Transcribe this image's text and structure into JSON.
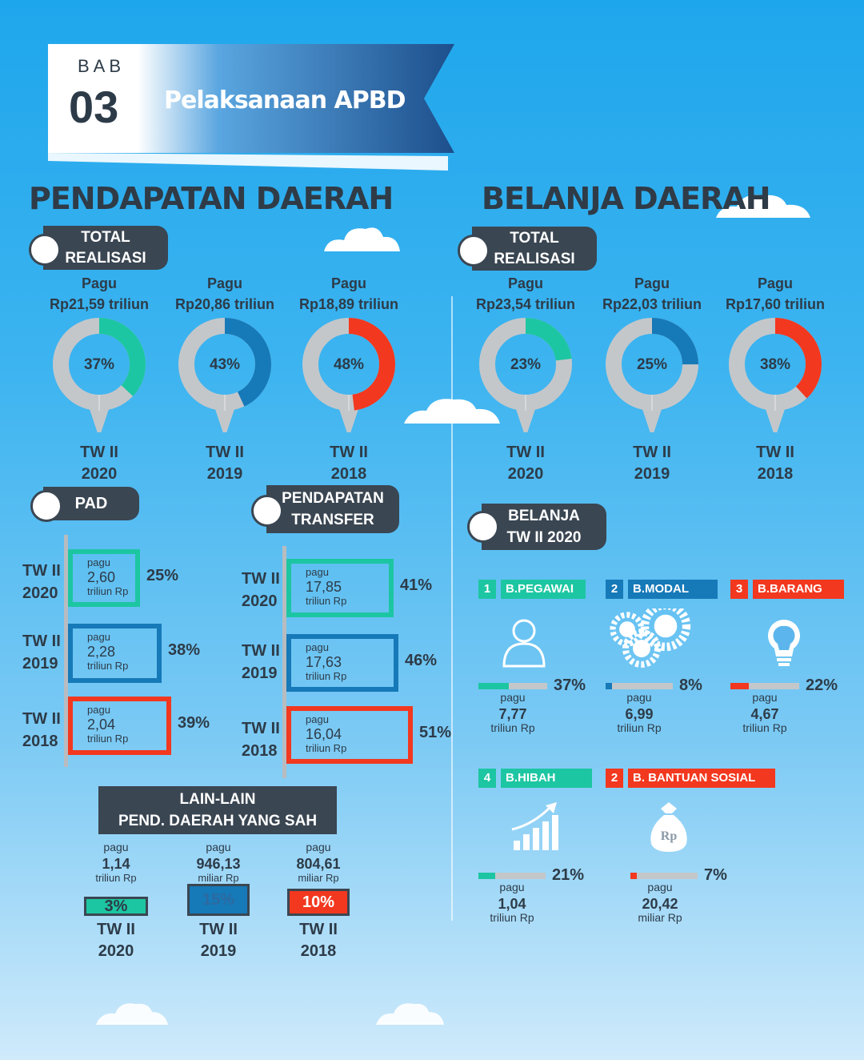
{
  "header": {
    "bab": "BAB",
    "number": "03",
    "title": "Pelaksanaan APBD"
  },
  "pendapatan": {
    "title": "PENDAPATAN DAERAH",
    "total_label": [
      "TOTAL",
      "REALISASI"
    ],
    "donuts": [
      {
        "pagu_label": "Pagu",
        "pagu": "Rp21,59 triliun",
        "pct": "37%",
        "value": 37,
        "color": "#1dc6a2",
        "tw": "TW II",
        "year": "2020"
      },
      {
        "pagu_label": "Pagu",
        "pagu": "Rp20,86 triliun",
        "pct": "43%",
        "value": 43,
        "color": "#1679b8",
        "tw": "TW II",
        "year": "2019"
      },
      {
        "pagu_label": "Pagu",
        "pagu": "Rp18,89 triliun",
        "pct": "48%",
        "value": 48,
        "color": "#f2381f",
        "tw": "TW II",
        "year": "2018"
      }
    ],
    "pad": {
      "label": "PAD",
      "rows": [
        {
          "tw": "TW II",
          "year": "2020",
          "pagu": "pagu",
          "value": "2,60",
          "unit": "triliun Rp",
          "pct": "25%",
          "color": "#1dc6a2"
        },
        {
          "tw": "TW II",
          "year": "2019",
          "pagu": "pagu",
          "value": "2,28",
          "unit": "triliun Rp",
          "pct": "38%",
          "color": "#1679b8"
        },
        {
          "tw": "TW II",
          "year": "2018",
          "pagu": "pagu",
          "value": "2,04",
          "unit": "triliun Rp",
          "pct": "39%",
          "color": "#f2381f"
        }
      ]
    },
    "transfer": {
      "label": [
        "PENDAPATAN",
        "TRANSFER"
      ],
      "rows": [
        {
          "tw": "TW II",
          "year": "2020",
          "pagu": "pagu",
          "value": "17,85",
          "unit": "triliun Rp",
          "pct": "41%",
          "color": "#1dc6a2"
        },
        {
          "tw": "TW II",
          "year": "2019",
          "pagu": "pagu",
          "value": "17,63",
          "unit": "triliun Rp",
          "pct": "46%",
          "color": "#1679b8"
        },
        {
          "tw": "TW II",
          "year": "2018",
          "pagu": "pagu",
          "value": "16,04",
          "unit": "triliun Rp",
          "pct": "51%",
          "color": "#f2381f"
        }
      ]
    },
    "lain": {
      "label": [
        "LAIN-LAIN",
        "PEND. DAERAH YANG SAH"
      ],
      "items": [
        {
          "pagu": "pagu",
          "value": "1,14",
          "unit": "triliun Rp",
          "pct": "3%",
          "color": "#1dc6a2",
          "tw": "TW II",
          "year": "2020"
        },
        {
          "pagu": "pagu",
          "value": "946,13",
          "unit": "miliar Rp",
          "pct": "15%",
          "color": "#1679b8",
          "tw": "TW II",
          "year": "2019"
        },
        {
          "pagu": "pagu",
          "value": "804,61",
          "unit": "miliar Rp",
          "pct": "10%",
          "color": "#f2381f",
          "tw": "TW II",
          "year": "2018"
        }
      ]
    }
  },
  "belanja": {
    "title": "BELANJA DAERAH",
    "total_label": [
      "TOTAL",
      "REALISASI"
    ],
    "donuts": [
      {
        "pagu_label": "Pagu",
        "pagu": "Rp23,54 triliun",
        "pct": "23%",
        "value": 23,
        "color": "#1dc6a2",
        "tw": "TW II",
        "year": "2020"
      },
      {
        "pagu_label": "Pagu",
        "pagu": "Rp22,03 triliun",
        "pct": "25%",
        "value": 25,
        "color": "#1679b8",
        "tw": "TW II",
        "year": "2019"
      },
      {
        "pagu_label": "Pagu",
        "pagu": "Rp17,60 triliun",
        "pct": "38%",
        "value": 38,
        "color": "#f2381f",
        "tw": "TW II",
        "year": "2018"
      }
    ],
    "tw_label": [
      "BELANJA",
      "TW II 2020"
    ],
    "categories": [
      {
        "num": "1",
        "name": "B.PEGAWAI",
        "color": "#1dc6a2",
        "icon": "person-icon",
        "pct": "37%",
        "value": 37,
        "pagu": "pagu",
        "amount": "7,77",
        "unit": "triliun Rp"
      },
      {
        "num": "2",
        "name": "B.MODAL",
        "color": "#1679b8",
        "icon": "gears-icon",
        "pct": "8%",
        "value": 8,
        "pagu": "pagu",
        "amount": "6,99",
        "unit": "triliun Rp"
      },
      {
        "num": "3",
        "name": "B.BARANG",
        "color": "#f2381f",
        "icon": "lightbulb-icon",
        "pct": "22%",
        "value": 22,
        "pagu": "pagu",
        "amount": "4,67",
        "unit": "triliun Rp"
      },
      {
        "num": "4",
        "name": "B.HIBAH",
        "color": "#1dc6a2",
        "icon": "growth-chart-icon",
        "pct": "21%",
        "value": 21,
        "pagu": "pagu",
        "amount": "1,04",
        "unit": "triliun Rp"
      },
      {
        "num": "2",
        "name": "B. BANTUAN SOSIAL",
        "color": "#f2381f",
        "icon": "money-bag-icon",
        "pct": "7%",
        "value": 7,
        "pagu": "pagu",
        "amount": "20,42",
        "unit": "miliar Rp",
        "icon_text": "Rp"
      }
    ]
  },
  "chart_data": [
    {
      "type": "pie",
      "title": "PENDAPATAN DAERAH",
      "categories": [
        "TW II 2020",
        "TW II 2019",
        "TW II 2018"
      ],
      "values": [
        37,
        43,
        48
      ]
    },
    {
      "type": "pie",
      "title": "BELANJA DAERAH",
      "categories": [
        "TW II 2020",
        "TW II 2019",
        "TW II 2018"
      ],
      "values": [
        23,
        25,
        38
      ]
    },
    {
      "type": "bar",
      "title": "PAD",
      "categories": [
        "TW II 2020",
        "TW II 2019",
        "TW II 2018"
      ],
      "values": [
        25,
        38,
        39
      ]
    },
    {
      "type": "bar",
      "title": "PENDAPATAN TRANSFER",
      "categories": [
        "TW II 2020",
        "TW II 2019",
        "TW II 2018"
      ],
      "values": [
        41,
        46,
        51
      ]
    },
    {
      "type": "bar",
      "title": "LAIN-LAIN PEND. DAERAH YANG SAH",
      "categories": [
        "TW II 2020",
        "TW II 2019",
        "TW II 2018"
      ],
      "values": [
        3,
        15,
        10
      ]
    },
    {
      "type": "bar",
      "title": "BELANJA TW II 2020",
      "categories": [
        "B.PEGAWAI",
        "B.MODAL",
        "B.BARANG",
        "B.HIBAH",
        "B. BANTUAN SOSIAL"
      ],
      "values": [
        37,
        8,
        22,
        21,
        7
      ]
    }
  ]
}
